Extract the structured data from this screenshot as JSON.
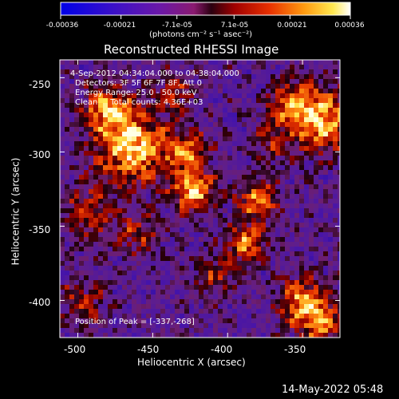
{
  "colorbar": {
    "ticks": [
      "-0.00036",
      "-0.00021",
      "-7.1e-05",
      "7.1e-05",
      "0.00021",
      "0.00036"
    ],
    "unit_label": "(photons cm⁻² s⁻¹ asec⁻²)",
    "range": [
      -0.00036,
      0.00036
    ]
  },
  "title": "Reconstructed RHESSI Image",
  "annotations": {
    "time_range": "4-Sep-2012 04:34:04.000 to 04:38:04.000",
    "detectors": "Detectors: 3F 5F 6F 7F 8F, Att 0",
    "energy_range": "Energy Range: 25.0 - 50.0 keV",
    "method_counts": "Clean     Total counts: 4.36E+03",
    "peak_position": "Position of Peak = [-337,-268]"
  },
  "x_axis": {
    "label": "Heliocentric X (arcsec)",
    "ticks": [
      "-500",
      "-450",
      "-400",
      "-350"
    ],
    "tick_values": [
      -500,
      -450,
      -400,
      -350
    ],
    "range": [
      -512,
      -325
    ]
  },
  "y_axis": {
    "label": "Heliocentric Y (arcsec)",
    "ticks": [
      "-250",
      "-300",
      "-350",
      "-400"
    ],
    "tick_values": [
      -250,
      -300,
      -350,
      -400
    ],
    "range": [
      -425,
      -238
    ]
  },
  "timestamp": "14-May-2022 05:48",
  "colors": {
    "background": "#000000",
    "text": "#ffffff",
    "colormap": "blue-purple-red-yellow-white"
  }
}
